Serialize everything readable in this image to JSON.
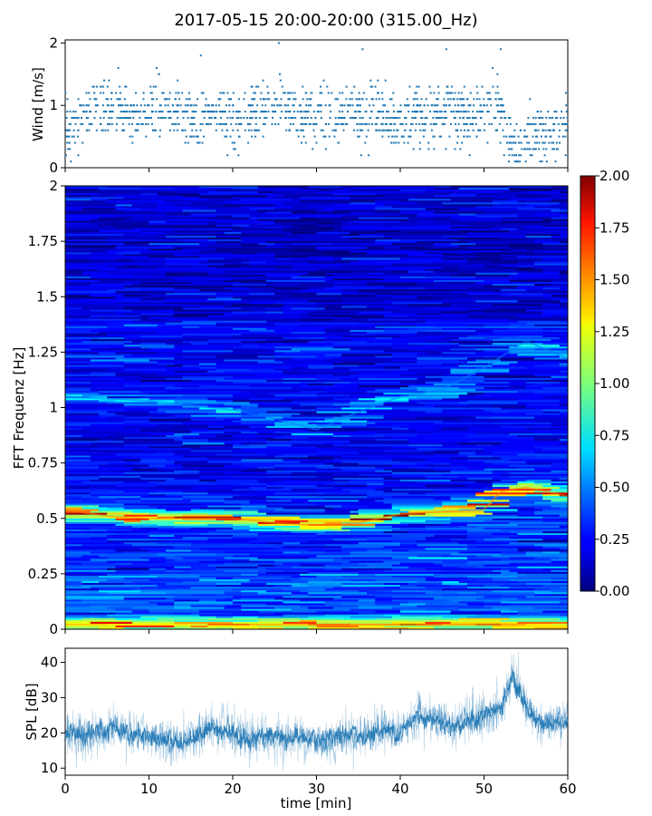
{
  "figure": {
    "title": "2017-05-15 20:00-20:00 (315.00_Hz)"
  },
  "chart_data": [
    {
      "id": "wind",
      "type": "scatter",
      "ylabel": "Wind [m/s]",
      "xlabel": "",
      "xlim": [
        0,
        60
      ],
      "ylim": [
        0,
        2.05
      ],
      "yticks": [
        0,
        1,
        2
      ],
      "ytick_labels": [
        "0",
        "1",
        "2"
      ],
      "xticks": [
        0,
        10,
        20,
        30,
        40,
        50,
        60
      ],
      "point_color": "#1f77b4",
      "trend": {
        "x": [
          0,
          2,
          4,
          6,
          8,
          10,
          12,
          14,
          16,
          18,
          20,
          22,
          24,
          26,
          28,
          30,
          32,
          34,
          36,
          38,
          40,
          42,
          44,
          46,
          48,
          50,
          52,
          53,
          54,
          56,
          58,
          60
        ],
        "y": [
          0.6,
          0.8,
          1.0,
          0.9,
          0.8,
          0.9,
          1.0,
          0.8,
          0.7,
          0.9,
          0.7,
          0.8,
          0.9,
          1.0,
          0.8,
          0.9,
          0.8,
          0.9,
          0.8,
          0.9,
          0.7,
          0.9,
          0.8,
          0.9,
          0.8,
          0.9,
          1.0,
          0.5,
          0.3,
          0.5,
          0.6,
          0.7
        ]
      },
      "peaks": [
        {
          "x": 25.5,
          "y": 2.0
        },
        {
          "x": 35.5,
          "y": 1.9
        },
        {
          "x": 45.5,
          "y": 1.9
        },
        {
          "x": 52.0,
          "y": 1.9
        },
        {
          "x": 16.2,
          "y": 1.8
        }
      ]
    },
    {
      "id": "spectrogram",
      "type": "heatmap",
      "ylabel": "FFT Frequenz [Hz]",
      "xlabel": "",
      "xlim": [
        0,
        60
      ],
      "ylim": [
        0,
        2
      ],
      "yticks": [
        0,
        0.25,
        0.5,
        0.75,
        1,
        1.25,
        1.5,
        1.75,
        2
      ],
      "ytick_labels": [
        "0",
        "0.25",
        "0.5",
        "0.75",
        "1",
        "1.25",
        "1.5",
        "1.75",
        "2"
      ],
      "xticks": [
        0,
        10,
        20,
        30,
        40,
        50,
        60
      ],
      "colormap": "jet",
      "colorbar": {
        "range": [
          0,
          2
        ],
        "ticks": [
          0,
          0.25,
          0.5,
          0.75,
          1,
          1.25,
          1.5,
          1.75,
          2
        ],
        "tick_labels": [
          "0.00",
          "0.25",
          "0.50",
          "0.75",
          "1.00",
          "1.25",
          "1.50",
          "1.75",
          "2.00"
        ]
      },
      "bands": [
        {
          "x": [
            0,
            5,
            10,
            15,
            20,
            25,
            30,
            35,
            40,
            45,
            50,
            52,
            55,
            60
          ],
          "y": [
            0.54,
            0.51,
            0.5,
            0.5,
            0.5,
            0.48,
            0.47,
            0.48,
            0.52,
            0.53,
            0.54,
            0.62,
            0.64,
            0.6
          ],
          "intensity": 1.5
        },
        {
          "x": [
            0,
            10,
            20,
            25,
            30,
            35,
            40,
            45,
            50,
            55,
            60
          ],
          "y": [
            1.05,
            1.03,
            0.99,
            0.95,
            0.9,
            0.98,
            1.05,
            1.08,
            1.18,
            1.3,
            1.22
          ],
          "intensity": 0.5
        },
        {
          "x": [
            0,
            60
          ],
          "y": [
            0.02,
            0.02
          ],
          "intensity": 1.3
        }
      ]
    },
    {
      "id": "spl",
      "type": "line",
      "ylabel": "SPL [dB]",
      "xlabel": "time [min]",
      "xlim": [
        0,
        60
      ],
      "ylim": [
        8,
        44
      ],
      "yticks": [
        10,
        20,
        30,
        40
      ],
      "ytick_labels": [
        "10",
        "20",
        "30",
        "40"
      ],
      "xticks": [
        0,
        10,
        20,
        30,
        40,
        50,
        60
      ],
      "xtick_labels": [
        "0",
        "10",
        "20",
        "30",
        "40",
        "50",
        "60"
      ],
      "line_color": "#1f77b4",
      "series": [
        {
          "x": [
            0,
            2,
            4,
            6,
            8,
            10,
            12,
            14,
            16,
            18,
            20,
            22,
            24,
            26,
            28,
            30,
            32,
            34,
            36,
            38,
            40,
            42,
            44,
            46,
            48,
            50,
            52,
            53,
            53.5,
            54,
            55,
            56,
            58,
            60
          ],
          "values": [
            21,
            19,
            20,
            22,
            20,
            19,
            18,
            17,
            20,
            22,
            19,
            18,
            20,
            18,
            19,
            17,
            18,
            20,
            19,
            21,
            20,
            25,
            24,
            22,
            23,
            25,
            27,
            33,
            36,
            32,
            28,
            24,
            22,
            23
          ]
        }
      ]
    }
  ]
}
